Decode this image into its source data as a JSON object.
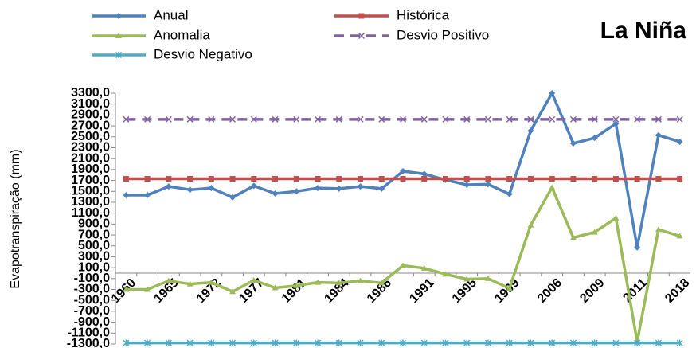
{
  "chart_data": {
    "type": "line",
    "title": "La Niña",
    "y_label": "Evapotranspiração (mm)",
    "categories": [
      "1960",
      null,
      "1965",
      null,
      "1972",
      null,
      "1977",
      null,
      "1981",
      null,
      "1984",
      null,
      "1986",
      null,
      "1991",
      null,
      "1995",
      null,
      "1999",
      null,
      "2006",
      null,
      "2009",
      null,
      "2011",
      null,
      "2018"
    ],
    "series": [
      {
        "name": "Anual",
        "color": "#4f81bd",
        "marker": "diamond",
        "values": [
          1430,
          1430,
          1590,
          1530,
          1560,
          1390,
          1600,
          1460,
          1500,
          1560,
          1550,
          1590,
          1550,
          1870,
          1820,
          1710,
          1620,
          1630,
          1450,
          2610,
          3300,
          2380,
          2480,
          2740,
          470,
          2530,
          2410
        ]
      },
      {
        "name": "Histórica",
        "color": "#c0504d",
        "marker": "square",
        "values": [
          1730,
          1730,
          1730,
          1730,
          1730,
          1730,
          1730,
          1730,
          1730,
          1730,
          1730,
          1730,
          1730,
          1730,
          1730,
          1730,
          1730,
          1730,
          1730,
          1730,
          1730,
          1730,
          1730,
          1730,
          1730,
          1730,
          1730
        ]
      },
      {
        "name": "Anomalia",
        "color": "#9bbb59",
        "marker": "triangle",
        "values": [
          -300,
          -300,
          -140,
          -200,
          -170,
          -340,
          -130,
          -270,
          -230,
          -170,
          -180,
          -140,
          -180,
          140,
          90,
          -20,
          -110,
          -100,
          -280,
          880,
          1570,
          650,
          750,
          1010,
          -1260,
          800,
          680
        ]
      },
      {
        "name": "Desvio Positivo",
        "color": "#8064a2",
        "marker": "x",
        "dash": true,
        "values": [
          2820,
          2820,
          2820,
          2820,
          2820,
          2820,
          2820,
          2820,
          2820,
          2820,
          2820,
          2820,
          2820,
          2820,
          2820,
          2820,
          2820,
          2820,
          2820,
          2820,
          2820,
          2820,
          2820,
          2820,
          2820,
          2820,
          2820
        ]
      },
      {
        "name": "Desvio Negativo",
        "color": "#4bacc6",
        "marker": "star",
        "values": [
          -1280,
          -1280,
          -1280,
          -1280,
          -1280,
          -1280,
          -1280,
          -1280,
          -1280,
          -1280,
          -1280,
          -1280,
          -1280,
          -1280,
          -1280,
          -1280,
          -1280,
          -1280,
          -1280,
          -1280,
          -1280,
          -1280,
          -1280,
          -1280,
          -1280,
          -1280,
          -1280
        ]
      }
    ],
    "ylim": [
      -1300,
      3300
    ],
    "yticks": [
      {
        "value": 3300,
        "label": "3300,0"
      },
      {
        "value": 3100,
        "label": "3100,0"
      },
      {
        "value": 2900,
        "label": "2900,0"
      },
      {
        "value": 2700,
        "label": "2700,0"
      },
      {
        "value": 2500,
        "label": "2500,0"
      },
      {
        "value": 2300,
        "label": "2300,0"
      },
      {
        "value": 2100,
        "label": "2100,0"
      },
      {
        "value": 1900,
        "label": "1900,0"
      },
      {
        "value": 1700,
        "label": "1700,0"
      },
      {
        "value": 1500,
        "label": "1500,0"
      },
      {
        "value": 1300,
        "label": "1300,0"
      },
      {
        "value": 1100,
        "label": "1100,0"
      },
      {
        "value": 900,
        "label": "900,0"
      },
      {
        "value": 700,
        "label": "700,0"
      },
      {
        "value": 500,
        "label": "500,0"
      },
      {
        "value": 300,
        "label": "300,0"
      },
      {
        "value": 100,
        "label": "100,0"
      },
      {
        "value": -100,
        "label": "-100,0"
      },
      {
        "value": -300,
        "label": "-300,0"
      },
      {
        "value": -500,
        "label": "-500,0"
      },
      {
        "value": -700,
        "label": "-700,0"
      },
      {
        "value": -900,
        "label": "-900,0"
      },
      {
        "value": -1100,
        "label": "-1100,0"
      },
      {
        "value": -1300,
        "label": "-1300,0"
      }
    ],
    "grid": false
  }
}
